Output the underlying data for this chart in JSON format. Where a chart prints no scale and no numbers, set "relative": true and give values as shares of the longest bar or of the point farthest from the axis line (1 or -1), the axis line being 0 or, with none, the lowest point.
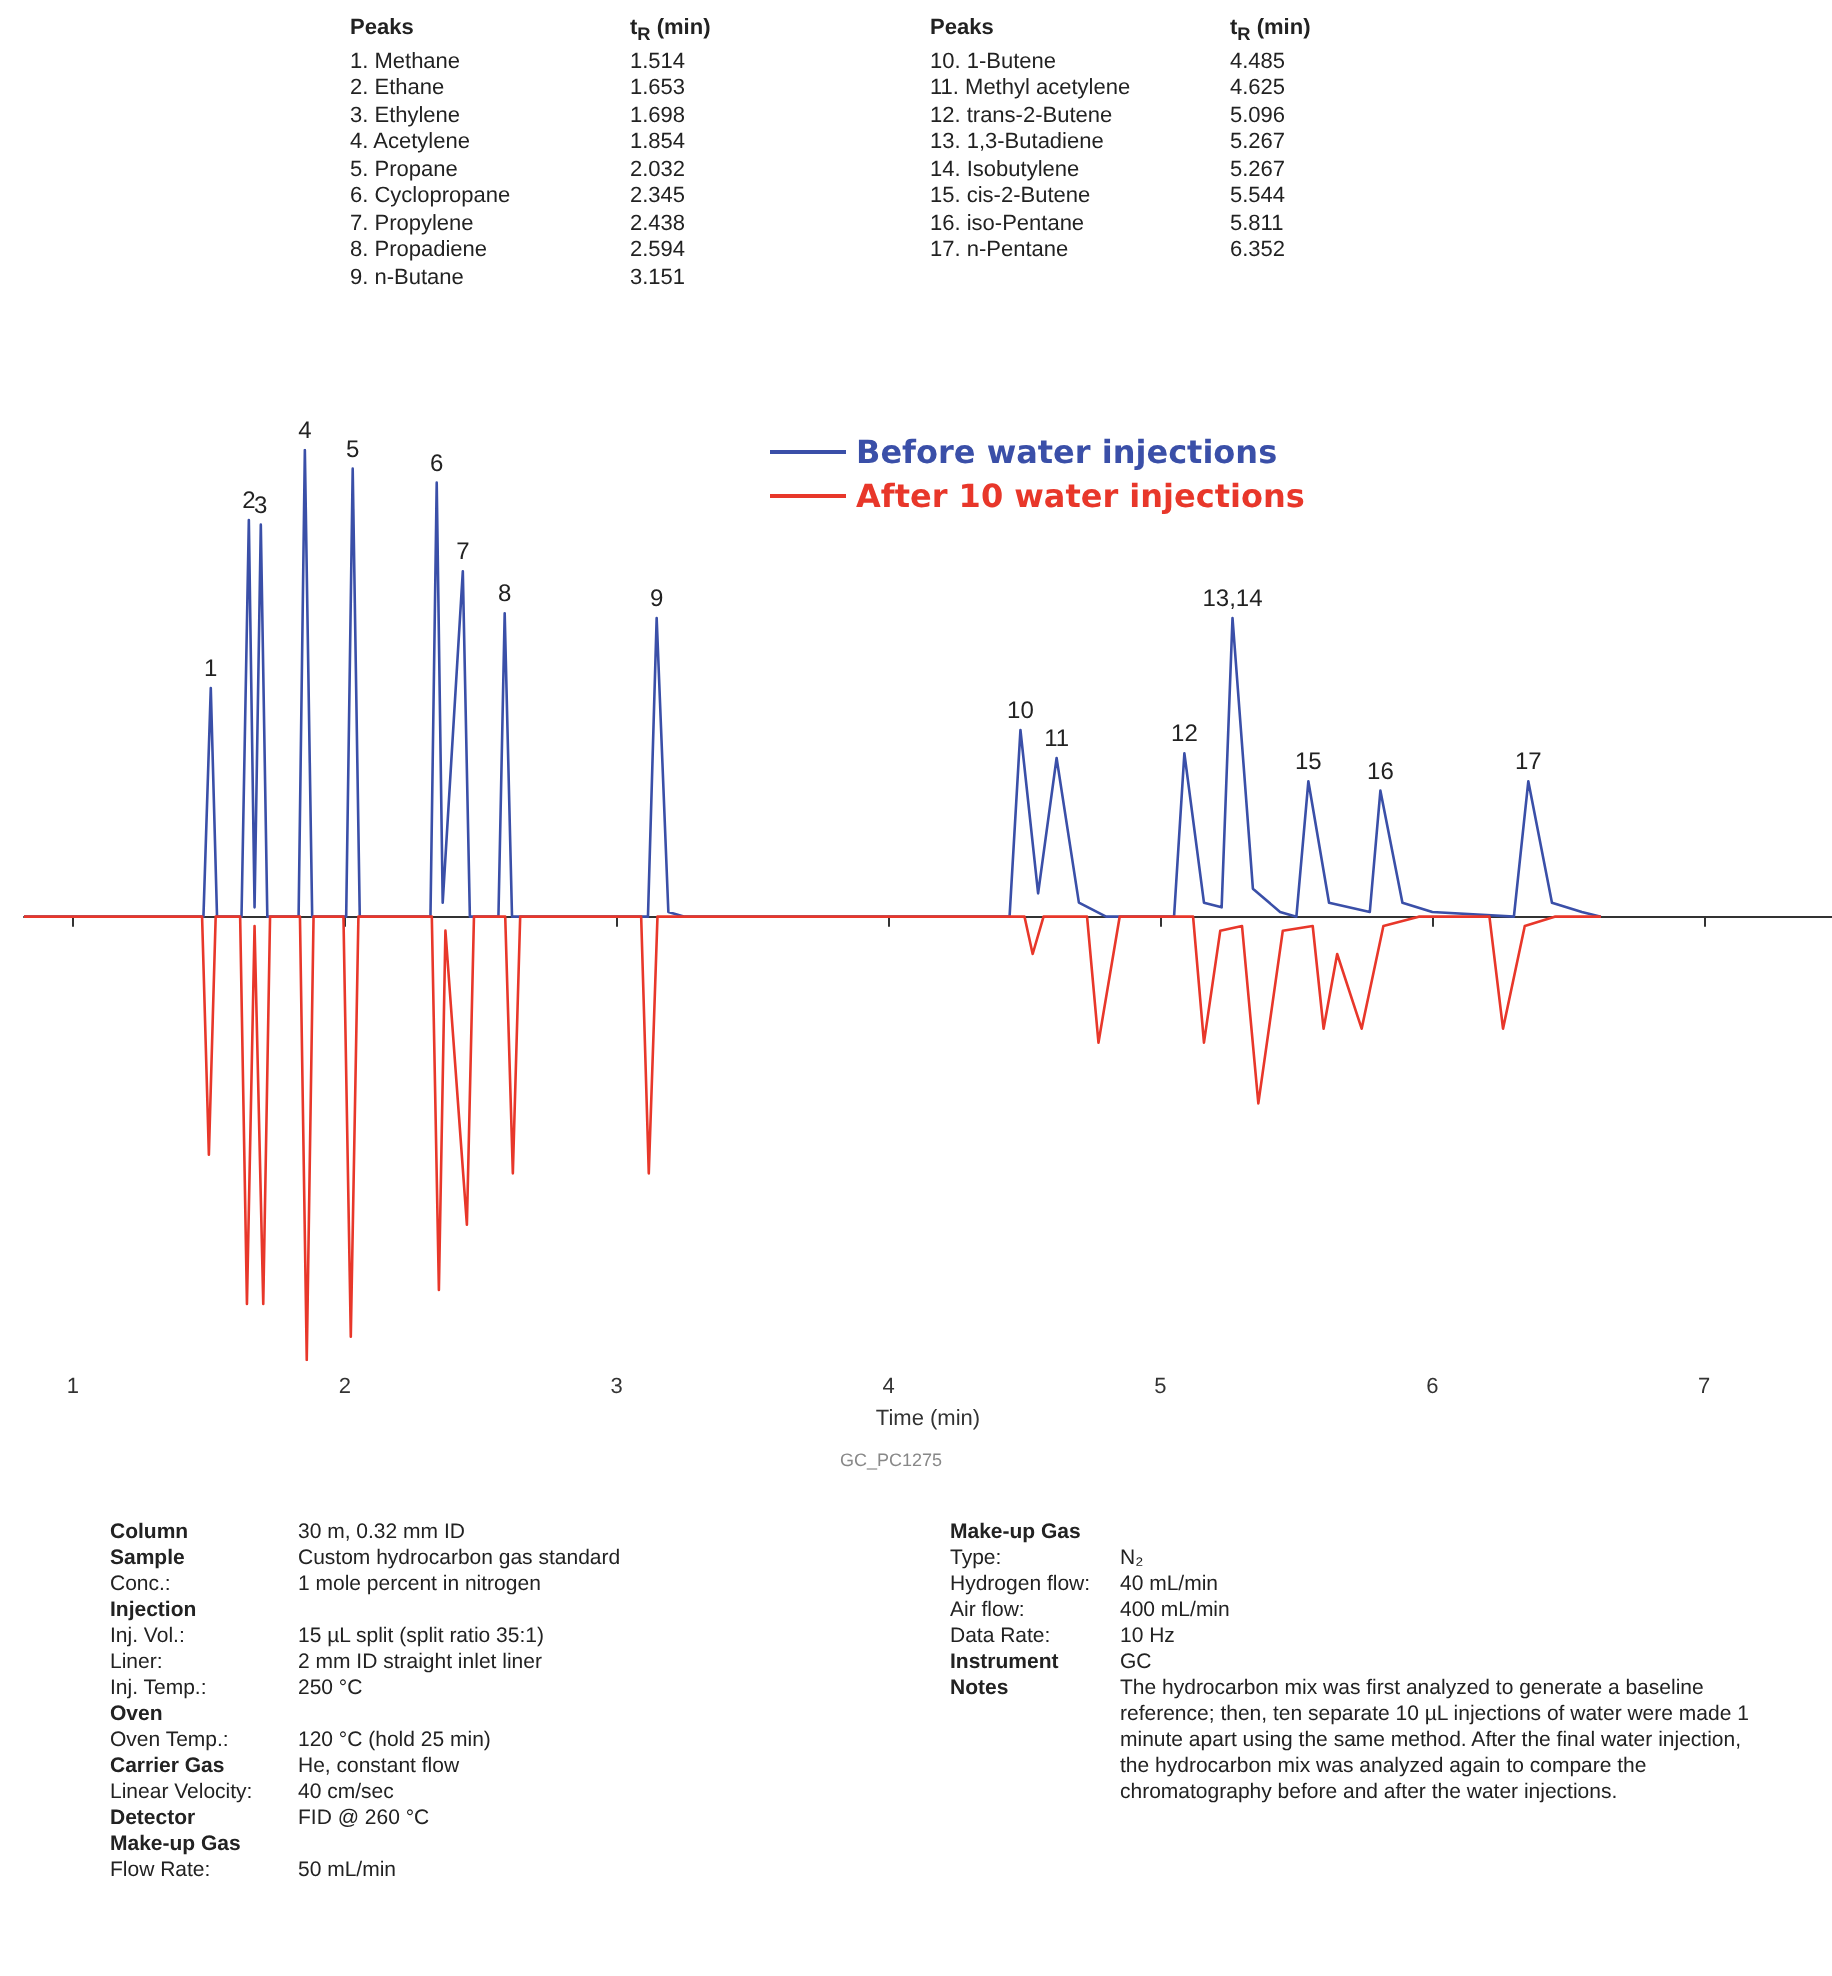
{
  "chart_data": {
    "type": "line",
    "relative": true,
    "xlabel": "Time (min)",
    "xlim": [
      0.82,
      7.47
    ],
    "xticks": [
      1,
      2,
      3,
      4,
      5,
      6,
      7
    ],
    "grid": false,
    "legend": "top",
    "marker": "none",
    "line_style": "solid",
    "series": [
      {
        "name": "Before water injections",
        "color": "#3a4fa8",
        "x": [
          0.82,
          1.48,
          1.507,
          1.53,
          1.62,
          1.647,
          1.668,
          1.691,
          1.715,
          1.83,
          1.853,
          1.88,
          2.005,
          2.029,
          2.055,
          2.315,
          2.338,
          2.36,
          2.434,
          2.46,
          2.565,
          2.588,
          2.615,
          3.115,
          3.147,
          3.19,
          3.25,
          4.445,
          4.485,
          4.55,
          4.618,
          4.7,
          4.8,
          5.05,
          5.088,
          5.16,
          5.225,
          5.265,
          5.34,
          5.44,
          5.5,
          5.544,
          5.62,
          5.77,
          5.809,
          5.89,
          6.0,
          6.3,
          6.353,
          6.44,
          6.55,
          6.62
        ],
        "values": [
          0,
          0,
          0.49,
          0,
          0,
          0.85,
          0.02,
          0.84,
          0,
          0,
          1.0,
          0,
          0,
          0.96,
          0,
          0,
          0.93,
          0.03,
          0.74,
          0,
          0,
          0.65,
          0,
          0,
          0.64,
          0.01,
          0,
          0,
          0.4,
          0.05,
          0.34,
          0.03,
          0,
          0,
          0.35,
          0.03,
          0.02,
          0.64,
          0.06,
          0.01,
          0,
          0.29,
          0.03,
          0.01,
          0.27,
          0.03,
          0.01,
          0,
          0.29,
          0.03,
          0.01,
          0
        ]
      },
      {
        "name": "After 10 water injections",
        "color": "#e8372a",
        "x": [
          0.82,
          1.475,
          1.5,
          1.525,
          1.615,
          1.64,
          1.668,
          1.7,
          1.725,
          1.835,
          1.86,
          1.885,
          1.995,
          2.022,
          2.05,
          2.32,
          2.346,
          2.37,
          2.449,
          2.475,
          2.59,
          2.618,
          2.645,
          3.09,
          3.118,
          3.15,
          4.5,
          4.53,
          4.57,
          4.73,
          4.772,
          4.85,
          5.12,
          5.16,
          5.22,
          5.3,
          5.36,
          5.45,
          5.56,
          5.6,
          5.65,
          5.74,
          5.82,
          5.95,
          6.21,
          6.26,
          6.34,
          6.45,
          6.62
        ],
        "values": [
          0,
          0,
          -0.51,
          0,
          0,
          -0.83,
          -0.02,
          -0.83,
          0,
          0,
          -0.95,
          0,
          0,
          -0.9,
          0,
          0,
          -0.8,
          -0.03,
          -0.66,
          0,
          0,
          -0.55,
          0,
          0,
          -0.55,
          0,
          0,
          -0.08,
          0,
          0,
          -0.27,
          0,
          0,
          -0.27,
          -0.03,
          -0.02,
          -0.4,
          -0.03,
          -0.02,
          -0.24,
          -0.08,
          -0.24,
          -0.02,
          0,
          0,
          -0.24,
          -0.02,
          0,
          0
        ]
      }
    ],
    "annotations": [
      {
        "text": "1",
        "x": 1.507,
        "y": 0.49
      },
      {
        "text": "2",
        "x": 1.647,
        "y": 0.85
      },
      {
        "text": "3",
        "x": 1.691,
        "y": 0.84
      },
      {
        "text": "4",
        "x": 1.853,
        "y": 1.0
      },
      {
        "text": "5",
        "x": 2.029,
        "y": 0.96
      },
      {
        "text": "6",
        "x": 2.338,
        "y": 0.93
      },
      {
        "text": "7",
        "x": 2.434,
        "y": 0.74
      },
      {
        "text": "8",
        "x": 2.588,
        "y": 0.65
      },
      {
        "text": "9",
        "x": 3.147,
        "y": 0.64
      },
      {
        "text": "10",
        "x": 4.485,
        "y": 0.4
      },
      {
        "text": "11",
        "x": 4.618,
        "y": 0.34
      },
      {
        "text": "12",
        "x": 5.088,
        "y": 0.35
      },
      {
        "text": "13,14",
        "x": 5.265,
        "y": 0.64
      },
      {
        "text": "15",
        "x": 5.544,
        "y": 0.29
      },
      {
        "text": "16",
        "x": 5.809,
        "y": 0.27
      },
      {
        "text": "17",
        "x": 6.353,
        "y": 0.29
      },
      "Peaks",
      "t$_{R}$ (min)",
      "Peaks",
      "t$_{R}$ (min)",
      "1. Methane",
      "1.514",
      "10. 1-Butene",
      "4.485",
      "2. Ethane",
      "1.653",
      "11. Methyl acetylene",
      "4.625",
      "3. Ethylene",
      "1.698",
      "12. trans-2-Butene",
      "5.096",
      "4. Acetylene",
      "1.854",
      "13. 1,3-Butadiene",
      "5.267",
      "5. Propane",
      "2.032",
      "14. Isobutylene",
      "5.267",
      "6. Cyclopropane",
      "2.345",
      "15. cis-2-Butene",
      "5.544",
      "7. Propylene",
      "2.438",
      "16. iso-Pentane",
      "5.811",
      "8. Propadiene",
      "2.594",
      "17. n-Pentane",
      "6.352",
      "9. n-Butane",
      "3.151",
      "GC_PC1275",
      "Column",
      "30 m, 0.32 mm ID",
      "Sample",
      "Custom hydrocarbon gas standard",
      "Conc.:",
      "1 mole percent in nitrogen",
      "Injection",
      "Inj. Vol.:",
      "15 µL split (split ratio 35:1)",
      "Liner:",
      "2 mm ID straight inlet liner",
      "Inj. Temp.:",
      "250 °C",
      "Oven",
      "Oven Temp.:",
      "120 °C (hold 25 min)",
      "Carrier Gas",
      "He, constant flow",
      "Linear Velocity:",
      "40 cm/sec",
      "Detector",
      "FID @ 260 °C",
      "Make-up Gas",
      "Flow Rate:",
      "50 mL/min",
      "Make-up Gas",
      "Type:",
      "N₂",
      "Hydrogen flow:",
      "40 mL/min",
      "Air flow:",
      "400 mL/min",
      "Data Rate:",
      "10 Hz",
      "Instrument",
      "GC",
      "Notes",
      "The hydrocarbon mix was first analyzed to generate a baseline reference; then, ten separate 10 µL injections of water were made 1 minute apart using the same method. After the final water injection, the hydrocarbon mix was analyzed again to compare the chromatography before and after the water injections."
    ]
  }
}
